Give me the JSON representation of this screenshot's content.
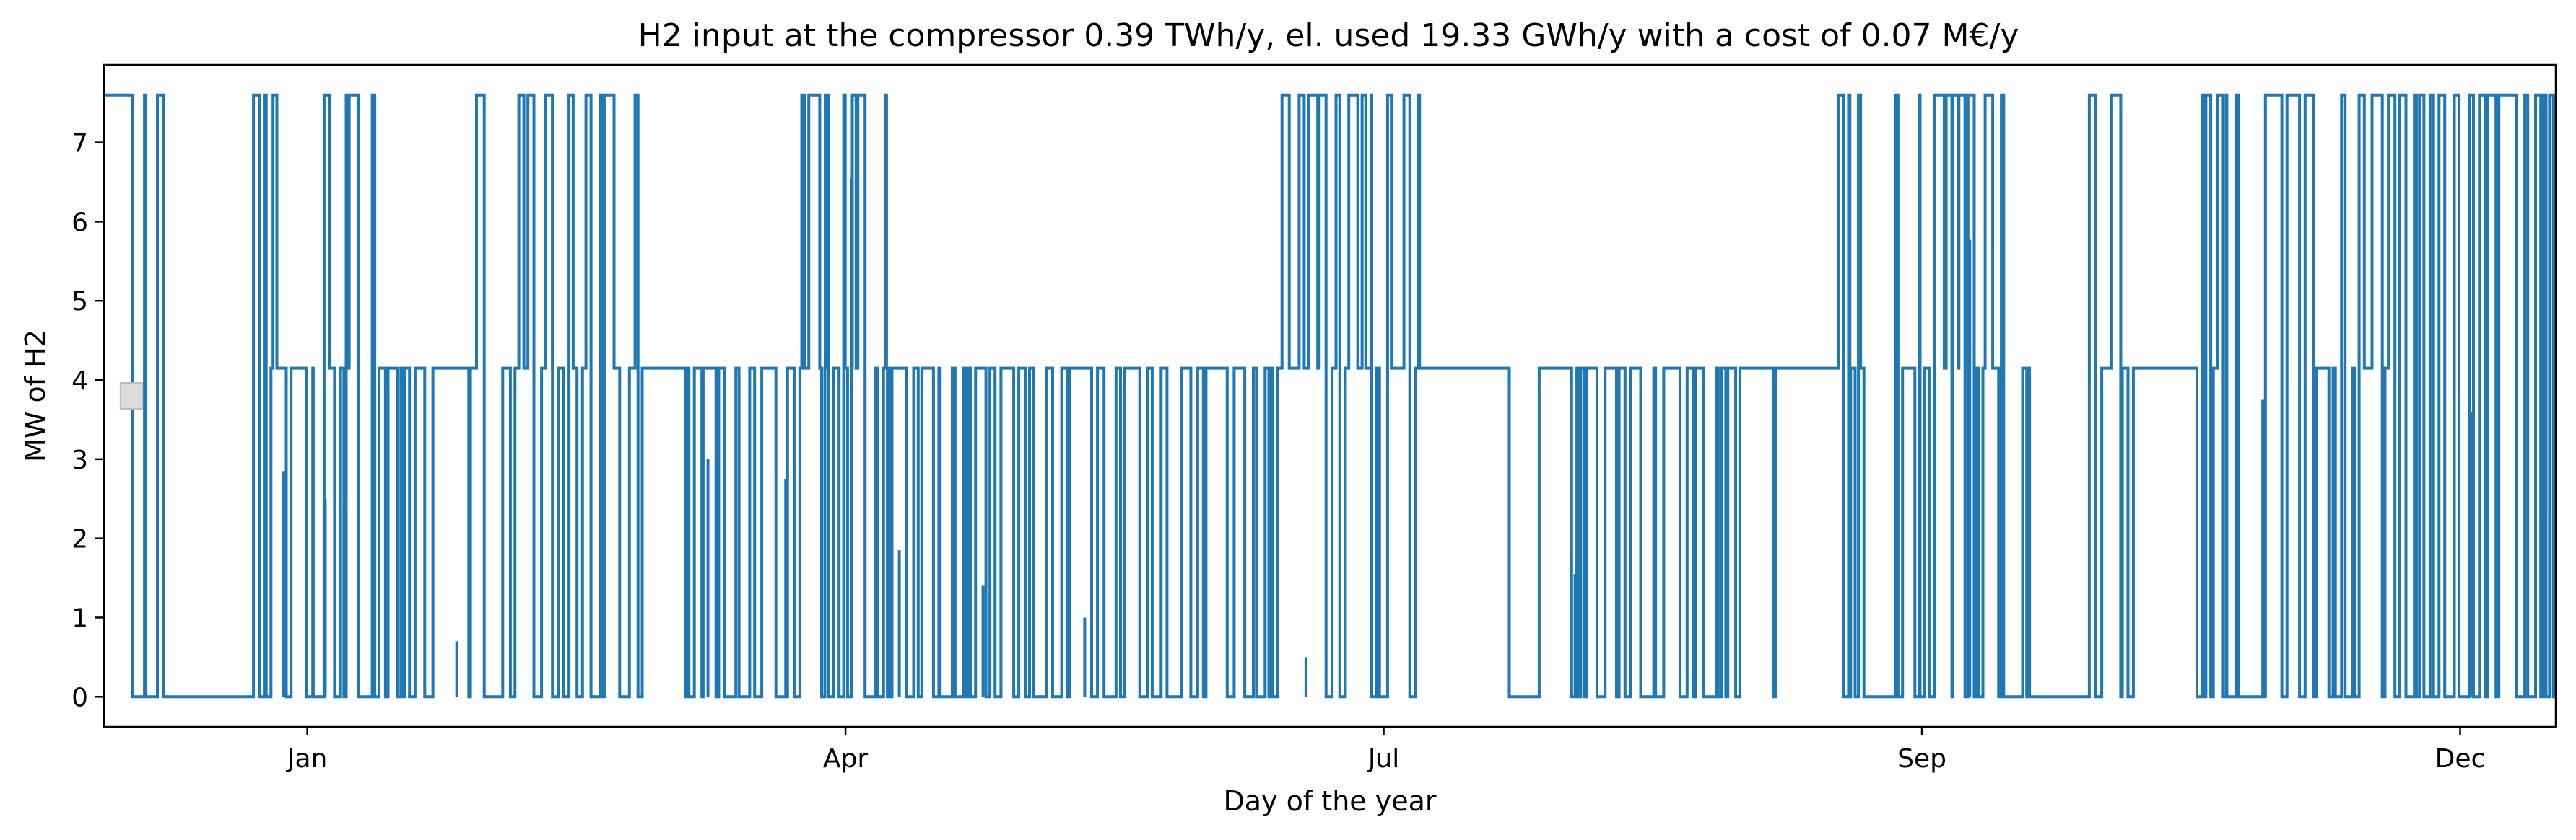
{
  "chart_data": {
    "type": "line",
    "title": "H2 input at the compressor 0.39 TWh/y, el. used 19.33 GWh/y with a cost of 0.07 M€/y",
    "xlabel": "Day of the year",
    "ylabel": "MW of H2",
    "x_tick_labels": [
      "Jan",
      "Apr",
      "Jul",
      "Sep",
      "Dec"
    ],
    "x_tick_days": [
      0,
      90,
      180,
      270,
      360
    ],
    "xlim": [
      -34,
      376
    ],
    "y_ticks": [
      0,
      1,
      2,
      3,
      4,
      5,
      6,
      7
    ],
    "ylim": [
      -0.38,
      7.98
    ],
    "grid": false,
    "line_color": "#1f77b4",
    "series": [
      {
        "levels": [
          0,
          4.15,
          7.6
        ],
        "max_value": 7.6,
        "segments_approx": [
          {
            "x0": -34,
            "x1": -31,
            "level": 7.6
          },
          {
            "x0": -31,
            "x1": -24,
            "mode": "switching",
            "levels": [
              0,
              7.6
            ]
          },
          {
            "x0": -24,
            "x1": -9,
            "level": 0
          },
          {
            "x0": -9,
            "x1": 1,
            "mode": "switching",
            "levels": [
              0,
              4.15,
              7.6
            ]
          },
          {
            "x0": 1,
            "x1": 7,
            "mode": "switching",
            "levels": [
              0,
              4.15,
              7.6
            ]
          },
          {
            "x0": 7,
            "x1": 12,
            "mode": "switching",
            "levels": [
              0,
              7.6
            ]
          },
          {
            "x0": 12,
            "x1": 21,
            "mode": "switching",
            "levels": [
              0,
              4.15
            ]
          },
          {
            "x0": 21,
            "x1": 26,
            "level": 4.15
          },
          {
            "x0": 26,
            "x1": 41,
            "mode": "switching",
            "levels": [
              0,
              4.15,
              7.6
            ]
          },
          {
            "x0": 41,
            "x1": 56,
            "mode": "switching",
            "levels": [
              0,
              4.15,
              7.6
            ]
          },
          {
            "x0": 56,
            "x1": 63,
            "level": 4.15
          },
          {
            "x0": 63,
            "x1": 76,
            "mode": "switching",
            "levels": [
              0,
              4.15
            ]
          },
          {
            "x0": 76,
            "x1": 86,
            "mode": "switching",
            "levels": [
              0,
              4.15,
              7.6
            ]
          },
          {
            "x0": 86,
            "x1": 101,
            "mode": "switching",
            "levels": [
              0,
              4.15,
              7.6
            ]
          },
          {
            "x0": 101,
            "x1": 116,
            "mode": "switching",
            "levels": [
              0,
              4.15
            ]
          },
          {
            "x0": 116,
            "x1": 161,
            "mode": "switching",
            "levels": [
              0,
              4.15
            ]
          },
          {
            "x0": 161,
            "x1": 166,
            "mode": "switching",
            "levels": [
              0,
              4.15,
              7.6
            ]
          },
          {
            "x0": 166,
            "x1": 178,
            "mode": "switching",
            "levels": [
              0,
              4.15,
              7.6
            ]
          },
          {
            "x0": 178,
            "x1": 186,
            "mode": "switching",
            "levels": [
              0,
              4.15,
              7.6
            ]
          },
          {
            "x0": 186,
            "x1": 201,
            "level": 4.15
          },
          {
            "x0": 201,
            "x1": 206,
            "mode": "switching",
            "levels": [
              0,
              4.15
            ]
          },
          {
            "x0": 206,
            "x1": 211,
            "level": 4.15
          },
          {
            "x0": 211,
            "x1": 246,
            "mode": "switching",
            "levels": [
              0,
              4.15
            ]
          },
          {
            "x0": 246,
            "x1": 256,
            "level": 4.15
          },
          {
            "x0": 256,
            "x1": 266,
            "mode": "switching",
            "levels": [
              0,
              4.15,
              7.6
            ]
          },
          {
            "x0": 266,
            "x1": 288,
            "mode": "switching",
            "levels": [
              0,
              4.15,
              7.6
            ]
          },
          {
            "x0": 288,
            "x1": 298,
            "level": 0
          },
          {
            "x0": 298,
            "x1": 306,
            "mode": "switching",
            "levels": [
              0,
              4.15,
              7.6
            ]
          },
          {
            "x0": 306,
            "x1": 316,
            "level": 4.15
          },
          {
            "x0": 316,
            "x1": 321,
            "mode": "switching",
            "levels": [
              0,
              4.15,
              7.6
            ]
          },
          {
            "x0": 321,
            "x1": 336,
            "mode": "switching",
            "levels": [
              0,
              7.6
            ]
          },
          {
            "x0": 336,
            "x1": 348,
            "mode": "switching",
            "levels": [
              0,
              4.15,
              7.6
            ]
          },
          {
            "x0": 348,
            "x1": 366,
            "mode": "switching",
            "levels": [
              0,
              7.6
            ]
          },
          {
            "x0": 366,
            "x1": 376,
            "mode": "switching",
            "levels": [
              0,
              7.6
            ]
          }
        ],
        "spikes_approx": [
          {
            "x": -27,
            "value": 4.65
          },
          {
            "x": -4,
            "value": 2.85
          },
          {
            "x": 3,
            "value": 2.5
          },
          {
            "x": 25,
            "value": 0.7
          },
          {
            "x": 67,
            "value": 3.0
          },
          {
            "x": 80,
            "value": 2.75
          },
          {
            "x": 91,
            "value": 6.55
          },
          {
            "x": 99,
            "value": 1.85
          },
          {
            "x": 113,
            "value": 1.4
          },
          {
            "x": 130,
            "value": 1.0
          },
          {
            "x": 167,
            "value": 0.5
          },
          {
            "x": 212,
            "value": 1.55
          },
          {
            "x": 278,
            "value": 5.77
          },
          {
            "x": 323,
            "value": 0.55
          },
          {
            "x": 327,
            "value": 3.75
          },
          {
            "x": 362,
            "value": 3.6
          },
          {
            "x": 374,
            "value": 2.25
          }
        ],
        "annotation_box": {
          "x": -31,
          "value": 3.8
        }
      }
    ]
  }
}
